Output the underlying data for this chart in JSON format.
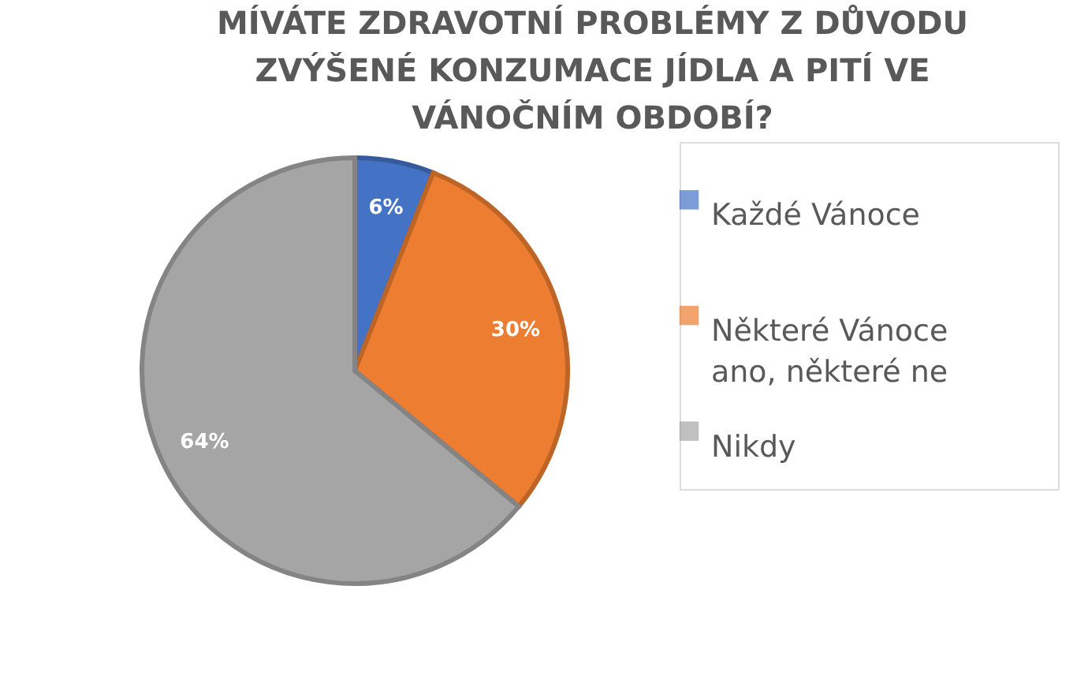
{
  "chart_data": {
    "type": "pie",
    "title": "MÍVÁTE ZDRAVOTNÍ PROBLÉMY Z DŮVODU ZVÝŠENÉ KONZUMACE JÍDLA A PITÍ VE VÁNOČNÍM OBDOBÍ?",
    "categories": [
      "Každé Vánoce",
      "Některé Vánoce ano, některé ne",
      "Nikdy"
    ],
    "values": [
      6,
      30,
      64
    ],
    "value_labels": [
      "6%",
      "30%",
      "64%"
    ],
    "colors": [
      "#4472c4",
      "#ed7d31",
      "#a5a5a5"
    ],
    "legend": "right"
  }
}
